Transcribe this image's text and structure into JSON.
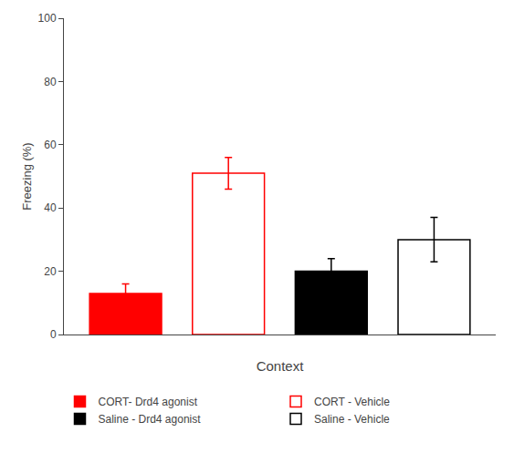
{
  "chart_data": {
    "type": "bar",
    "categories": [
      "CORT- Drd4 agonist",
      "CORT - Vehicle",
      "Saline - Drd4 agonist",
      "Saline - Vehicle"
    ],
    "series": [
      {
        "name": "CORT- Drd4 agonist",
        "color": "#ff0000",
        "marker": "filled",
        "values": [
          13,
          null,
          null,
          null
        ],
        "errors": [
          3,
          null,
          null,
          null
        ]
      },
      {
        "name": "CORT - Vehicle",
        "color": "#ff0000",
        "marker": "hollow",
        "values": [
          null,
          51,
          null,
          null
        ],
        "errors": [
          null,
          5,
          null,
          null
        ]
      },
      {
        "name": "Saline - Drd4 agonist",
        "color": "#000000",
        "marker": "filled",
        "values": [
          null,
          null,
          20,
          null
        ],
        "errors": [
          null,
          null,
          4,
          null
        ]
      },
      {
        "name": "Saline - Vehicle",
        "color": "#000000",
        "marker": "hollow",
        "values": [
          null,
          null,
          null,
          30
        ],
        "errors": [
          null,
          null,
          null,
          7
        ]
      }
    ],
    "xlabel": "Context",
    "ylabel": "Freezing (%)",
    "ylim": [
      0,
      100
    ],
    "yticks": [
      0,
      20,
      40,
      60,
      80,
      100
    ],
    "grid": false,
    "legend": "bottom",
    "tick_labels": "y"
  }
}
